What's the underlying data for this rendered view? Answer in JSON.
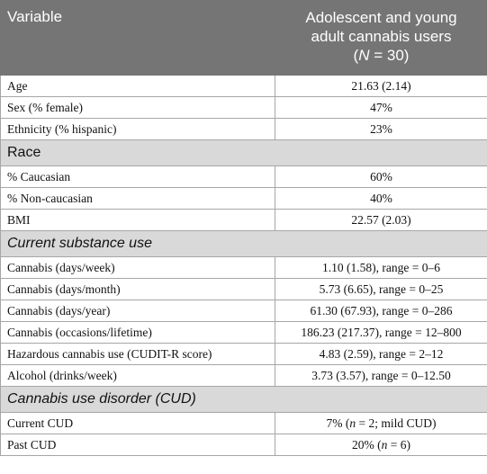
{
  "header": {
    "variable": "Variable",
    "group_line1": "Adolescent and young",
    "group_line2": "adult cannabis users",
    "group_line3_n": "N",
    "group_line3_rest": " = 30)"
  },
  "rows_top": [
    {
      "label": "Age",
      "value": "21.63 (2.14)"
    },
    {
      "label": "Sex (% female)",
      "value": "47%"
    },
    {
      "label": "Ethnicity (% hispanic)",
      "value": "23%"
    }
  ],
  "section_race": "Race",
  "rows_race": [
    {
      "label": "% Caucasian",
      "value": "60%"
    },
    {
      "label": "% Non-caucasian",
      "value": "40%"
    },
    {
      "label": "BMI",
      "value": "22.57 (2.03)"
    }
  ],
  "section_substance": "Current substance use",
  "rows_substance": [
    {
      "label": "Cannabis (days/week)",
      "value": "1.10 (1.58), range = 0–6"
    },
    {
      "label": "Cannabis (days/month)",
      "value": "5.73 (6.65), range = 0–25"
    },
    {
      "label": "Cannabis (days/year)",
      "value": "61.30 (67.93), range = 0–286"
    },
    {
      "label": "Cannabis (occasions/lifetime)",
      "value": "186.23 (217.37), range = 12–800"
    },
    {
      "label": "Hazardous cannabis use (CUDIT-R score)",
      "value": "4.83 (2.59), range = 2–12"
    },
    {
      "label": "Alcohol (drinks/week)",
      "value": "3.73 (3.57), range = 0–12.50"
    }
  ],
  "section_cud": "Cannabis use disorder (CUD)",
  "rows_cud": [
    {
      "label": "Current CUD",
      "value_pre": "7% (",
      "value_n": "n",
      "value_post": " = 2; mild CUD)"
    },
    {
      "label": "Past CUD",
      "value_pre": "20% (",
      "value_n": "n",
      "value_post": " = 6)"
    }
  ]
}
